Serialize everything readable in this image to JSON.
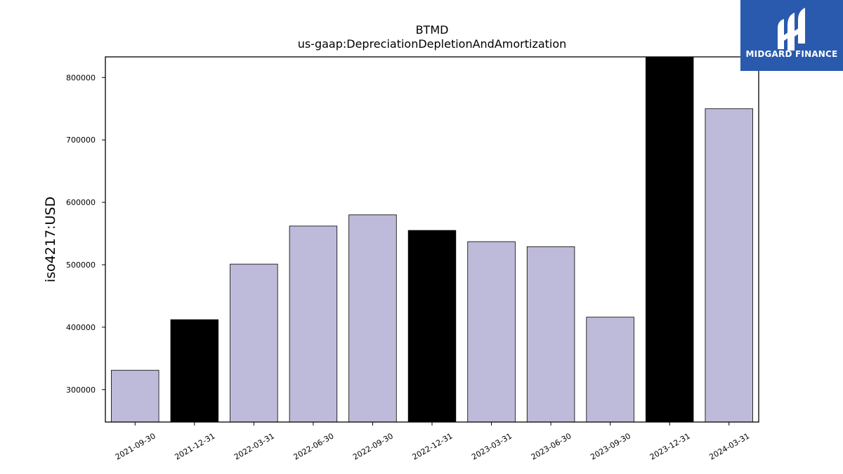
{
  "chart_data": {
    "type": "bar",
    "title": "BTMD",
    "subtitle": "us-gaap:DepreciationDepletionAndAmortization",
    "xlabel": "",
    "ylabel": "iso4217:USD",
    "categories": [
      "2021-09-30",
      "2021-12-31",
      "2022-03-31",
      "2022-06-30",
      "2022-09-30",
      "2022-12-31",
      "2023-03-31",
      "2023-06-30",
      "2023-09-30",
      "2023-12-31",
      "2024-03-31"
    ],
    "values": [
      331000,
      412000,
      501000,
      562000,
      580000,
      555000,
      537000,
      529000,
      416000,
      833000,
      750000
    ],
    "bar_colors": [
      "#bebad9",
      "#000000",
      "#bebad9",
      "#bebad9",
      "#bebad9",
      "#000000",
      "#bebad9",
      "#bebad9",
      "#bebad9",
      "#000000",
      "#bebad9"
    ],
    "ylim": [
      248000,
      833000
    ],
    "yticks": [
      300000,
      400000,
      500000,
      600000,
      700000,
      800000
    ],
    "grid": false,
    "legend": "none"
  },
  "logo": {
    "text": "MIDGARD FINANCE",
    "background": "#2a5aad",
    "icon": "midgard-m-logo-icon"
  }
}
